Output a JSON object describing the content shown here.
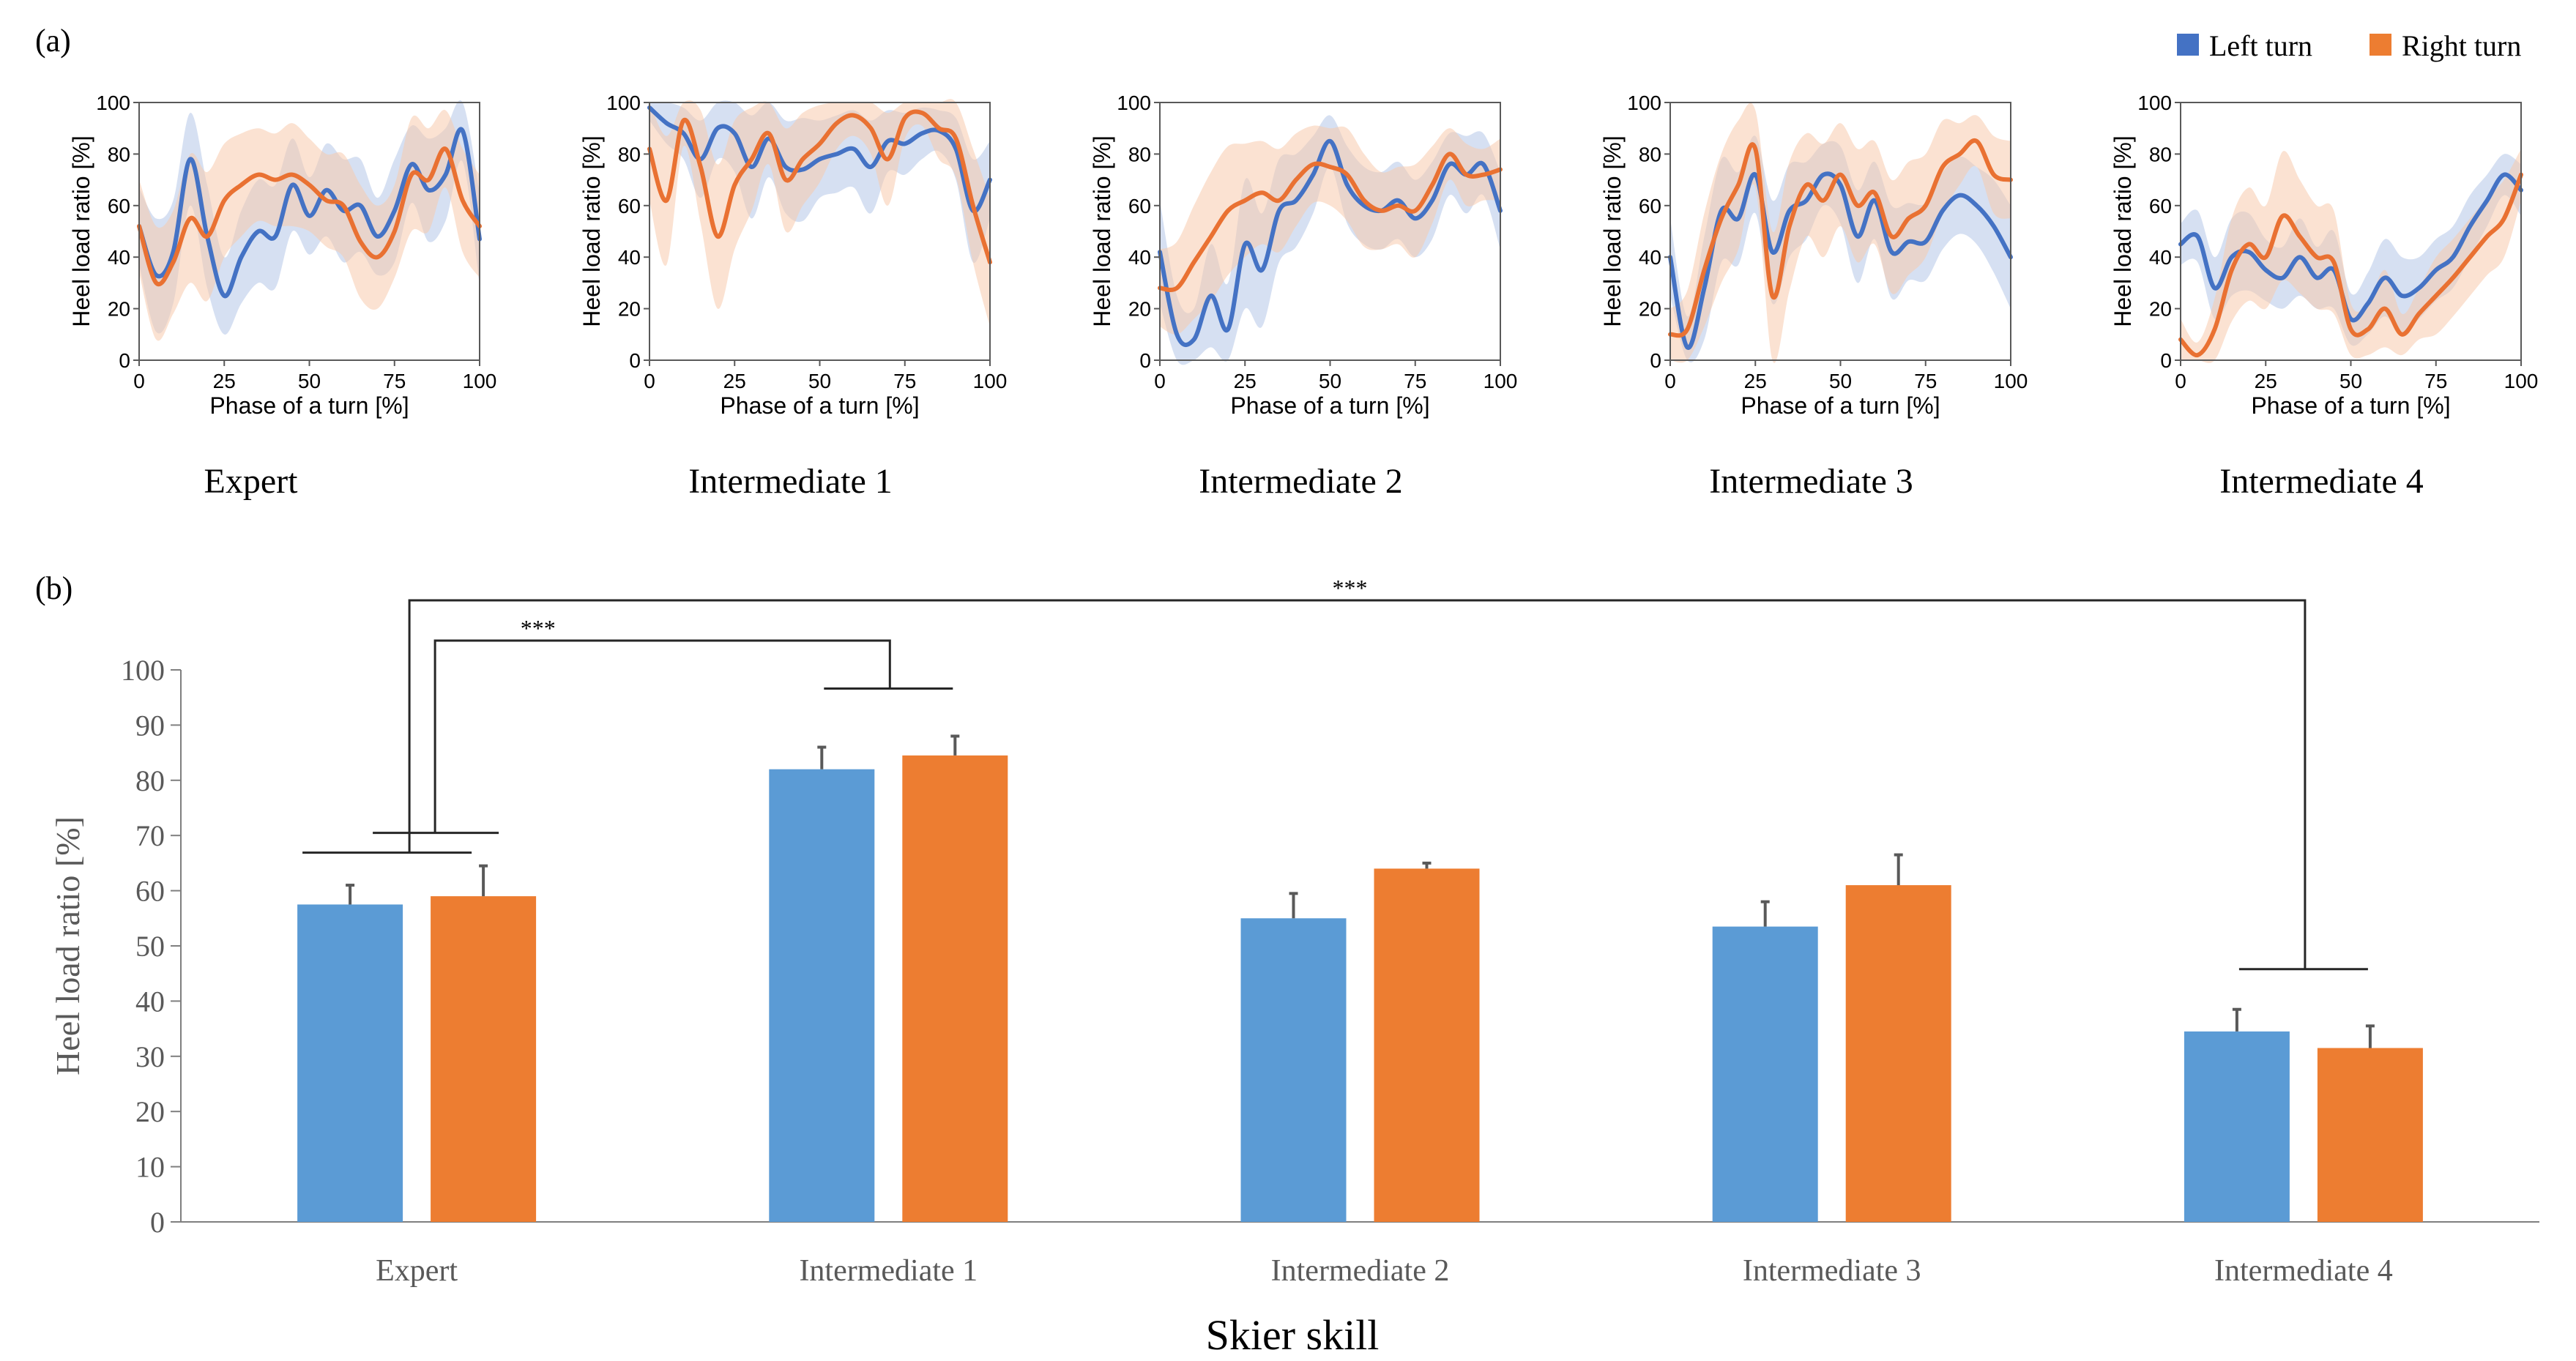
{
  "figure": {
    "panel_a_label": "(a)",
    "panel_b_label": "(b)",
    "legend": [
      {
        "name": "Left turn",
        "color": "#4472C4"
      },
      {
        "name": "Right turn",
        "color": "#ED7D31"
      }
    ],
    "colors": {
      "left_line": "#4472C4",
      "right_line": "#E97132",
      "left_band": "#B4C7E7",
      "right_band": "#F8CBAD",
      "left_bar": "#5B9BD5",
      "right_bar": "#ED7D31",
      "axis": "#595959",
      "text": "#000000",
      "tick_text_b": "#595959"
    }
  },
  "chart_data": [
    {
      "type": "line",
      "title": "Expert",
      "xlabel": "Phase of a turn [%]",
      "ylabel": "Heel load ratio [%]",
      "xlim": [
        0,
        100
      ],
      "ylim": [
        0,
        100
      ],
      "xticks": [
        0,
        25,
        50,
        75,
        100
      ],
      "yticks": [
        0,
        20,
        40,
        60,
        80,
        100
      ],
      "x": [
        0,
        5,
        10,
        15,
        20,
        25,
        30,
        35,
        40,
        45,
        50,
        55,
        60,
        65,
        70,
        75,
        80,
        85,
        90,
        95,
        100
      ],
      "series": [
        {
          "name": "Left turn",
          "values": [
            52,
            33,
            42,
            78,
            48,
            25,
            40,
            50,
            48,
            68,
            56,
            66,
            58,
            60,
            48,
            58,
            76,
            66,
            72,
            89,
            47
          ],
          "band": [
            15,
            22,
            20,
            18,
            20,
            15,
            18,
            20,
            20,
            18,
            15,
            18,
            20,
            18,
            15,
            20,
            15,
            20,
            18,
            12,
            18
          ]
        },
        {
          "name": "Right turn",
          "values": [
            52,
            30,
            38,
            55,
            48,
            62,
            68,
            72,
            70,
            72,
            68,
            62,
            60,
            46,
            40,
            50,
            72,
            70,
            82,
            62,
            52
          ],
          "band": [
            18,
            22,
            20,
            25,
            25,
            22,
            20,
            18,
            18,
            20,
            18,
            18,
            20,
            22,
            20,
            18,
            22,
            20,
            15,
            20,
            20
          ]
        }
      ]
    },
    {
      "type": "line",
      "title": "Intermediate 1",
      "xlabel": "Phase of a turn [%]",
      "ylabel": "Heel load ratio [%]",
      "xlim": [
        0,
        100
      ],
      "ylim": [
        0,
        100
      ],
      "xticks": [
        0,
        25,
        50,
        75,
        100
      ],
      "yticks": [
        0,
        20,
        40,
        60,
        80,
        100
      ],
      "x": [
        0,
        5,
        10,
        15,
        20,
        25,
        30,
        35,
        40,
        45,
        50,
        55,
        60,
        65,
        70,
        75,
        80,
        85,
        90,
        95,
        100
      ],
      "series": [
        {
          "name": "Left turn",
          "values": [
            98,
            92,
            88,
            78,
            90,
            88,
            75,
            86,
            75,
            74,
            78,
            80,
            82,
            75,
            85,
            84,
            88,
            89,
            82,
            58,
            70
          ],
          "band": [
            5,
            8,
            10,
            15,
            12,
            15,
            20,
            15,
            18,
            20,
            15,
            15,
            15,
            18,
            12,
            12,
            10,
            8,
            12,
            20,
            15
          ]
        },
        {
          "name": "Right turn",
          "values": [
            82,
            62,
            93,
            75,
            48,
            68,
            78,
            88,
            70,
            78,
            84,
            92,
            95,
            90,
            78,
            94,
            96,
            90,
            86,
            60,
            38
          ],
          "band": [
            20,
            25,
            10,
            22,
            28,
            25,
            20,
            12,
            20,
            18,
            15,
            10,
            8,
            10,
            18,
            8,
            5,
            12,
            15,
            22,
            25
          ]
        }
      ]
    },
    {
      "type": "line",
      "title": "Intermediate 2",
      "xlabel": "Phase of a turn [%]",
      "ylabel": "Heel load ratio [%]",
      "xlim": [
        0,
        100
      ],
      "ylim": [
        0,
        100
      ],
      "xticks": [
        0,
        25,
        50,
        75,
        100
      ],
      "yticks": [
        0,
        20,
        40,
        60,
        80,
        100
      ],
      "x": [
        0,
        5,
        10,
        15,
        20,
        25,
        30,
        35,
        40,
        45,
        50,
        55,
        60,
        65,
        70,
        75,
        80,
        85,
        90,
        95,
        100
      ],
      "series": [
        {
          "name": "Left turn",
          "values": [
            42,
            10,
            8,
            25,
            12,
            45,
            35,
            58,
            62,
            72,
            85,
            68,
            60,
            58,
            62,
            55,
            62,
            76,
            72,
            76,
            58
          ],
          "band": [
            20,
            15,
            12,
            20,
            18,
            25,
            22,
            20,
            18,
            15,
            10,
            15,
            15,
            15,
            15,
            15,
            15,
            12,
            15,
            12,
            15
          ]
        },
        {
          "name": "Right turn",
          "values": [
            28,
            28,
            38,
            48,
            58,
            62,
            65,
            62,
            70,
            76,
            75,
            72,
            62,
            58,
            60,
            58,
            68,
            80,
            72,
            72,
            74
          ],
          "band": [
            15,
            18,
            22,
            25,
            25,
            22,
            20,
            20,
            18,
            15,
            15,
            18,
            18,
            15,
            15,
            18,
            15,
            10,
            12,
            10,
            12
          ]
        }
      ]
    },
    {
      "type": "line",
      "title": "Intermediate 3",
      "xlabel": "Phase of a turn [%]",
      "ylabel": "Heel load ratio [%]",
      "xlim": [
        0,
        100
      ],
      "ylim": [
        0,
        100
      ],
      "xticks": [
        0,
        25,
        50,
        75,
        100
      ],
      "yticks": [
        0,
        20,
        40,
        60,
        80,
        100
      ],
      "x": [
        0,
        5,
        10,
        15,
        20,
        25,
        30,
        35,
        40,
        45,
        50,
        55,
        60,
        65,
        70,
        75,
        80,
        85,
        90,
        95,
        100
      ],
      "series": [
        {
          "name": "Left turn",
          "values": [
            40,
            5,
            28,
            58,
            55,
            72,
            42,
            58,
            62,
            72,
            68,
            48,
            62,
            42,
            46,
            46,
            58,
            64,
            60,
            52,
            40
          ],
          "band": [
            15,
            12,
            20,
            20,
            18,
            15,
            20,
            18,
            15,
            12,
            15,
            18,
            15,
            18,
            15,
            15,
            15,
            15,
            15,
            18,
            20
          ]
        },
        {
          "name": "Right turn",
          "values": [
            10,
            12,
            35,
            55,
            68,
            82,
            25,
            52,
            68,
            62,
            72,
            60,
            65,
            48,
            55,
            60,
            75,
            80,
            85,
            72,
            70
          ],
          "band": [
            10,
            15,
            22,
            25,
            25,
            15,
            25,
            25,
            20,
            22,
            20,
            22,
            20,
            22,
            22,
            20,
            18,
            12,
            10,
            15,
            15
          ]
        }
      ]
    },
    {
      "type": "line",
      "title": "Intermediate 4",
      "xlabel": "Phase of a turn [%]",
      "ylabel": "Heel load ratio [%]",
      "xlim": [
        0,
        100
      ],
      "ylim": [
        0,
        100
      ],
      "xticks": [
        0,
        25,
        50,
        75,
        100
      ],
      "yticks": [
        0,
        20,
        40,
        60,
        80,
        100
      ],
      "x": [
        0,
        5,
        10,
        15,
        20,
        25,
        30,
        35,
        40,
        45,
        50,
        55,
        60,
        65,
        70,
        75,
        80,
        85,
        90,
        95,
        100
      ],
      "series": [
        {
          "name": "Left turn",
          "values": [
            45,
            48,
            28,
            40,
            42,
            35,
            32,
            40,
            32,
            35,
            16,
            22,
            32,
            25,
            28,
            35,
            40,
            52,
            62,
            72,
            66
          ],
          "band": [
            8,
            10,
            12,
            15,
            15,
            12,
            12,
            15,
            12,
            15,
            10,
            12,
            15,
            15,
            12,
            12,
            12,
            12,
            10,
            8,
            10
          ]
        },
        {
          "name": "Right turn",
          "values": [
            8,
            2,
            12,
            35,
            45,
            40,
            56,
            48,
            40,
            38,
            12,
            12,
            20,
            10,
            18,
            25,
            32,
            40,
            48,
            55,
            72
          ],
          "band": [
            8,
            5,
            12,
            20,
            22,
            20,
            25,
            22,
            20,
            20,
            10,
            10,
            15,
            8,
            10,
            15,
            15,
            15,
            15,
            15,
            10
          ]
        }
      ]
    },
    {
      "type": "bar",
      "xlabel": "Skier skill",
      "ylabel": "Heel load ratio [%]",
      "ylim": [
        0,
        100
      ],
      "yticks": [
        0,
        10,
        20,
        30,
        40,
        50,
        60,
        70,
        80,
        90,
        100
      ],
      "categories": [
        "Expert",
        "Intermediate 1",
        "Intermediate 2",
        "Intermediate 3",
        "Intermediate 4"
      ],
      "series": [
        {
          "name": "Left turn",
          "values": [
            57.5,
            82,
            55,
            53.5,
            34.5
          ],
          "errors": [
            3.5,
            4,
            4.5,
            4.5,
            4
          ]
        },
        {
          "name": "Right turn",
          "values": [
            59,
            84.5,
            64,
            61,
            31.5
          ],
          "errors": [
            5.5,
            3.5,
            1,
            5.5,
            4
          ]
        }
      ],
      "annotations": [
        {
          "text": "***",
          "from": "Expert",
          "to": "Intermediate 1"
        },
        {
          "text": "***",
          "from": "Expert",
          "to": "Intermediate 4"
        }
      ]
    }
  ]
}
